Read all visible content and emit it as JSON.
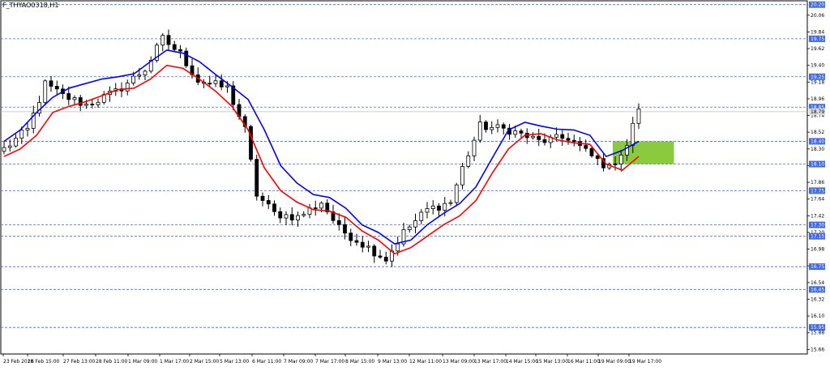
{
  "chart_data": {
    "type": "candlestick",
    "symbol_label": "F_THYAO0318,H1",
    "y_ticks": [
      "20.06",
      "19.84",
      "19.62",
      "19.40",
      "19.18",
      "18.96",
      "18.74",
      "18.52",
      "18.30",
      "18.08",
      "17.86",
      "17.64",
      "17.42",
      "17.20",
      "16.98",
      "16.76",
      "16.54",
      "16.32",
      "16.10",
      "15.88",
      "15.66"
    ],
    "ylim": [
      15.6,
      20.25
    ],
    "x_ticks": [
      "23 Feb 2018",
      "26 Feb 15:00",
      "27 Feb 13:00",
      "28 Feb 11:00",
      "1 Mar 09:00",
      "1 Mar 17:00",
      "2 Mar 15:00",
      "5 Mar 13:00",
      "6 Mar 11:00",
      "7 Mar 09:00",
      "7 Mar 17:00",
      "8 Mar 15:00",
      "9 Mar 13:00",
      "12 Mar 11:00",
      "13 Mar 09:00",
      "13 Mar 17:00",
      "14 Mar 15:00",
      "15 Mar 13:00",
      "16 Mar 11:00",
      "19 Mar 09:00",
      "19 Mar 17:00"
    ],
    "levels": [
      {
        "value": 20.2,
        "label": "20.20"
      },
      {
        "value": 19.75,
        "label": "19.75"
      },
      {
        "value": 19.25,
        "label": "19.25"
      },
      {
        "value": 18.85,
        "label": "18.85"
      },
      {
        "value": 18.4,
        "label": "18.40"
      },
      {
        "value": 18.1,
        "label": "18.10"
      },
      {
        "value": 17.75,
        "label": "17.75"
      },
      {
        "value": 17.3,
        "label": "17.30"
      },
      {
        "value": 17.15,
        "label": "17.15"
      },
      {
        "value": 16.75,
        "label": "16.75"
      },
      {
        "value": 16.45,
        "label": "16.45"
      },
      {
        "value": 15.95,
        "label": "15.95"
      }
    ],
    "current_price": {
      "value": 18.79,
      "label": "18.79"
    },
    "highlight_zone": {
      "start_index": 104,
      "end_index": 114,
      "price_low": 18.1,
      "price_high": 18.4
    },
    "anchors": [
      [
        0,
        18.3
      ],
      [
        4,
        18.55
      ],
      [
        7,
        19.15
      ],
      [
        10,
        19.0
      ],
      [
        14,
        18.88
      ],
      [
        19,
        19.05
      ],
      [
        24,
        19.35
      ],
      [
        27,
        19.75
      ],
      [
        30,
        19.55
      ],
      [
        33,
        19.2
      ],
      [
        38,
        19.1
      ],
      [
        41,
        18.55
      ],
      [
        43,
        17.7
      ],
      [
        46,
        17.45
      ],
      [
        50,
        17.4
      ],
      [
        54,
        17.6
      ],
      [
        57,
        17.25
      ],
      [
        62,
        17.0
      ],
      [
        65,
        16.85
      ],
      [
        68,
        17.2
      ],
      [
        72,
        17.5
      ],
      [
        76,
        17.6
      ],
      [
        78,
        18.05
      ],
      [
        81,
        18.6
      ],
      [
        86,
        18.55
      ],
      [
        91,
        18.4
      ],
      [
        96,
        18.45
      ],
      [
        100,
        18.2
      ],
      [
        103,
        18.05
      ],
      [
        106,
        18.35
      ],
      [
        108,
        18.85
      ]
    ],
    "series": [
      {
        "name": "",
        "color": "#0000ff",
        "values": [
          18.4,
          18.55,
          18.78,
          18.98,
          19.1,
          19.16,
          19.22,
          19.25,
          19.29,
          19.45,
          19.6,
          19.56,
          19.45,
          19.28,
          19.12,
          18.95,
          18.55,
          18.08,
          17.85,
          17.7,
          17.66,
          17.52,
          17.3,
          17.2,
          17.05,
          17.1,
          17.3,
          17.45,
          17.58,
          17.8,
          18.18,
          18.55,
          18.65,
          18.6,
          18.56,
          18.55,
          18.48,
          18.2,
          18.28,
          18.4
        ]
      },
      {
        "name": "",
        "color": "#ff0000",
        "values": [
          18.2,
          18.3,
          18.48,
          18.78,
          18.86,
          18.92,
          19.0,
          19.08,
          19.1,
          19.22,
          19.4,
          19.36,
          19.22,
          19.06,
          18.86,
          18.55,
          18.05,
          17.75,
          17.6,
          17.5,
          17.48,
          17.4,
          17.22,
          17.1,
          16.92,
          17.0,
          17.15,
          17.3,
          17.42,
          17.62,
          17.98,
          18.3,
          18.48,
          18.5,
          18.42,
          18.38,
          18.36,
          18.1,
          18.02,
          18.2
        ]
      }
    ]
  }
}
